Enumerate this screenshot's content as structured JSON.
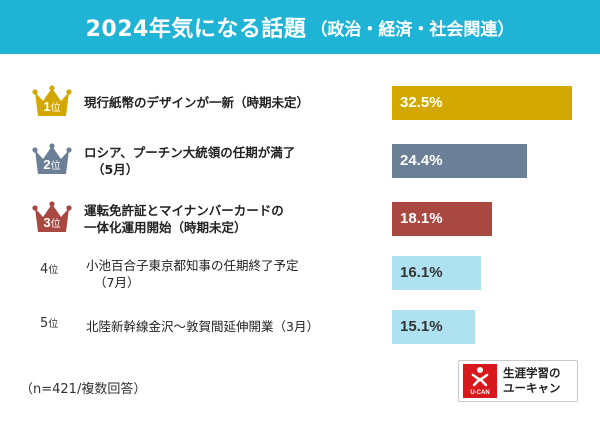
{
  "header": {
    "title_main": "2024年気になる話題",
    "title_sub": "（政治・経済・社会関連）"
  },
  "rank_suffix": "位",
  "chart_data": {
    "type": "bar",
    "orientation": "horizontal",
    "title": "2024年気になる話題（政治・経済・社会関連）",
    "unit": "%",
    "xlim": [
      0,
      34
    ],
    "items": [
      {
        "rank": "1",
        "lines": [
          "現行紙幣のデザインが一新（時期未定）"
        ],
        "value": 32.5,
        "label": "32.5%",
        "color": "#d2a800",
        "value_color": "#ffffff",
        "badge_color": "#d2a800"
      },
      {
        "rank": "2",
        "lines": [
          "ロシア、プーチン大統領の任期が満了",
          "（5月）"
        ],
        "value": 24.4,
        "label": "24.4%",
        "color": "#6b8096",
        "value_color": "#ffffff",
        "badge_color": "#6b8096"
      },
      {
        "rank": "3",
        "lines": [
          "運転免許証とマイナンバーカードの",
          "一体化運用開始（時期未定）"
        ],
        "value": 18.1,
        "label": "18.1%",
        "color": "#a84840",
        "value_color": "#ffffff",
        "badge_color": "#a84840"
      },
      {
        "rank": "4",
        "lines": [
          "小池百合子東京都知事の任期終了予定",
          "（7月）"
        ],
        "value": 16.1,
        "label": "16.1%",
        "color": "#aee2f0",
        "value_color": "#333333"
      },
      {
        "rank": "5",
        "lines": [
          "北陸新幹線金沢～敦賀間延伸開業（3月）"
        ],
        "value": 15.1,
        "label": "15.1%",
        "color": "#aee2f0",
        "value_color": "#333333"
      }
    ]
  },
  "footnote": "（n=421/複数回答）",
  "logo": {
    "brand_line1": "生涯学習の",
    "brand_line2": "ユーキャン",
    "mark_text": "U-CAN",
    "color": "#d7191d"
  }
}
